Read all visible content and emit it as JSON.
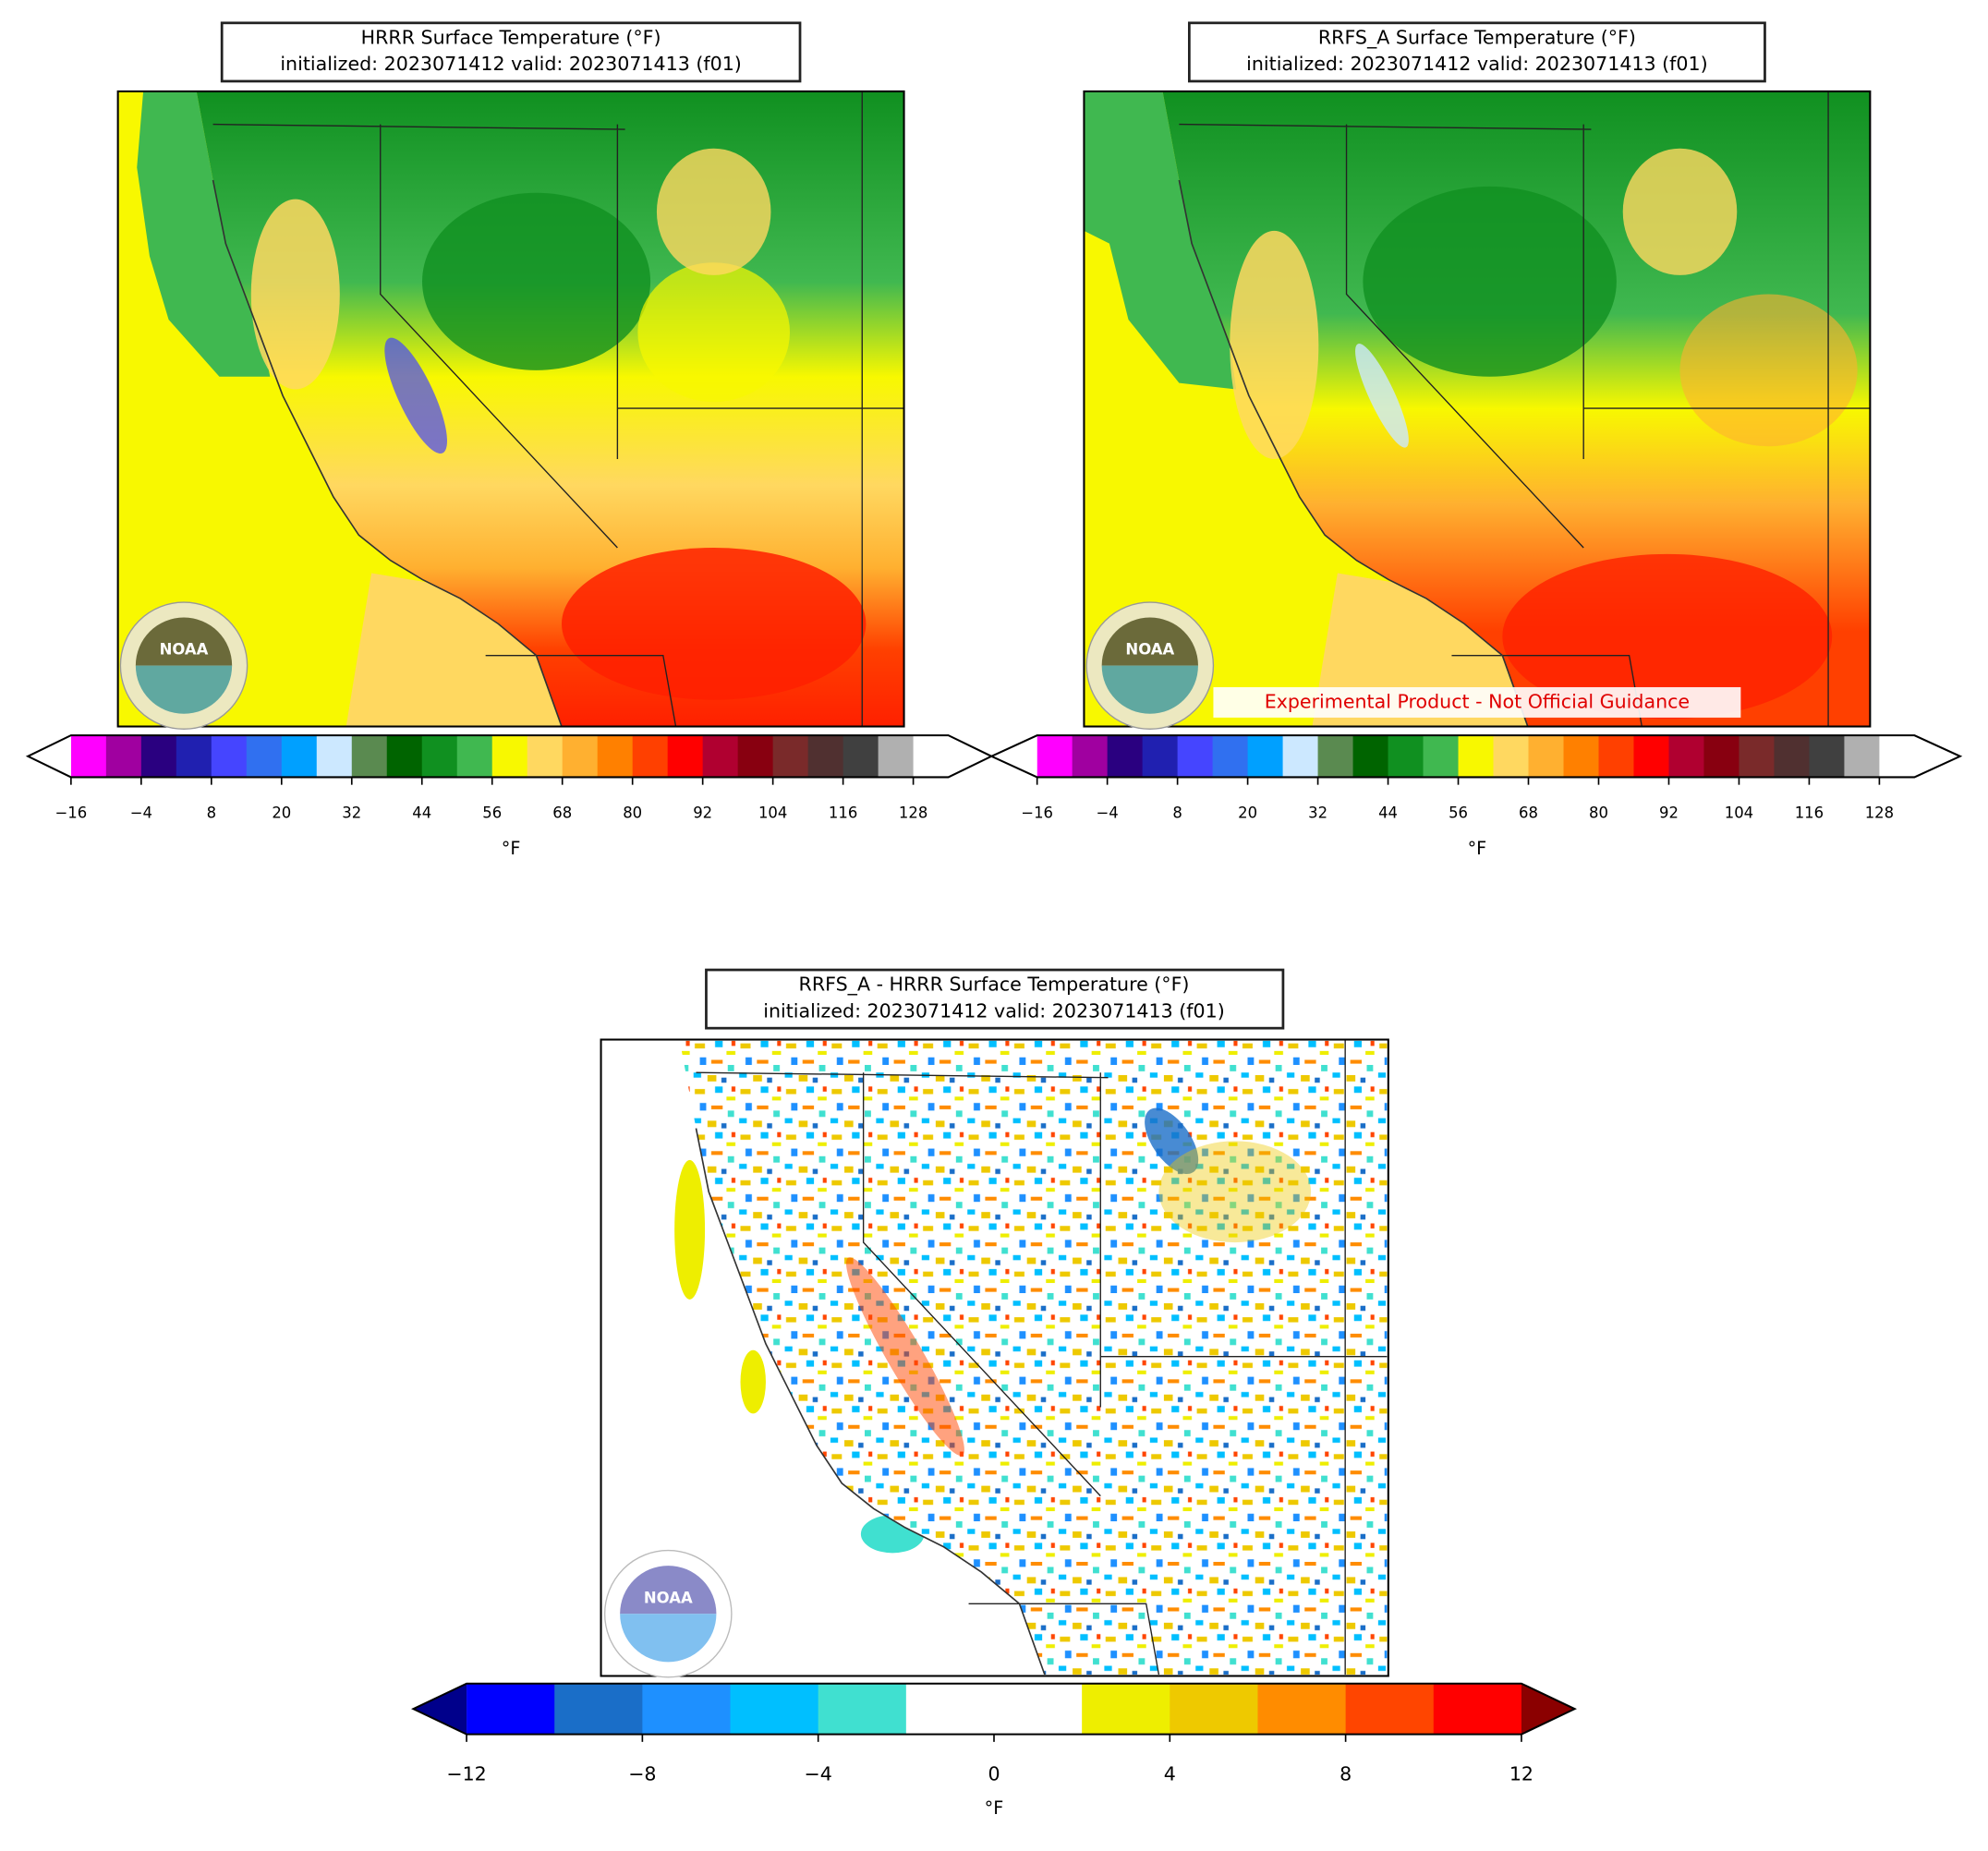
{
  "panels": [
    {
      "title": "HRRR Surface Temperature (°F)",
      "subtitle": "initialized: 2023071412 valid: 2023071413 (f01)",
      "colorbar": {
        "colors": [
          "#ff00ff",
          "#a000a0",
          "#2a0080",
          "#2020b0",
          "#4545ff",
          "#3070f0",
          "#00a0ff",
          "#cce8ff",
          "#5a8a50",
          "#006400",
          "#109020",
          "#40b850",
          "#f8f800",
          "#ffd860",
          "#ffb030",
          "#ff8000",
          "#ff4000",
          "#ff0000",
          "#b00030",
          "#880010",
          "#7a2a2a",
          "#503030",
          "#404040",
          "#b0b0b0",
          "#ffffff"
        ],
        "extend_colors": [
          "#ffffff",
          "#ffffff"
        ],
        "vlim": [
          -16,
          134
        ],
        "ticks": [
          {
            "value": -16,
            "label": "−16"
          },
          {
            "value": -4,
            "label": "−4"
          },
          8,
          20,
          32,
          44,
          56,
          68,
          80,
          92,
          104,
          116,
          128
        ],
        "label": "°F"
      }
    },
    {
      "title": "RRFS_A Surface Temperature (°F)",
      "subtitle": "initialized: 2023071412 valid: 2023071413 (f01)",
      "annotation": "Experimental Product - Not Official Guidance",
      "colorbar": {
        "colors": [
          "#ff00ff",
          "#a000a0",
          "#2a0080",
          "#2020b0",
          "#4545ff",
          "#3070f0",
          "#00a0ff",
          "#cce8ff",
          "#5a8a50",
          "#006400",
          "#109020",
          "#40b850",
          "#f8f800",
          "#ffd860",
          "#ffb030",
          "#ff8000",
          "#ff4000",
          "#ff0000",
          "#b00030",
          "#880010",
          "#7a2a2a",
          "#503030",
          "#404040",
          "#b0b0b0",
          "#ffffff"
        ],
        "extend_colors": [
          "#ffffff",
          "#ffffff"
        ],
        "vlim": [
          -16,
          134
        ],
        "ticks": [
          {
            "value": -16,
            "label": "−16"
          },
          {
            "value": -4,
            "label": "−4"
          },
          8,
          20,
          32,
          44,
          56,
          68,
          80,
          92,
          104,
          116,
          128
        ],
        "label": "°F"
      }
    },
    {
      "title": "RRFS_A - HRRR Surface Temperature (°F)",
      "subtitle": "initialized: 2023071412 valid: 2023071413 (f01)",
      "colorbar": {
        "colors": [
          "#0000ff",
          "#1a6ec8",
          "#1e90ff",
          "#00bfff",
          "#40e0d0",
          "#ffffff",
          "#ffffff",
          "#eeee00",
          "#eec900",
          "#ff8c00",
          "#ff4500",
          "#ff0000"
        ],
        "extend_colors": [
          "#00008b",
          "#8b0000"
        ],
        "vlim": [
          -12,
          12
        ],
        "ticks": [
          {
            "value": -12,
            "label": "−12"
          },
          {
            "value": -8,
            "label": "−8"
          },
          {
            "value": -4,
            "label": "−4"
          },
          0,
          4,
          8,
          12
        ],
        "label": "°F"
      }
    }
  ],
  "logo_text": "NOAA"
}
